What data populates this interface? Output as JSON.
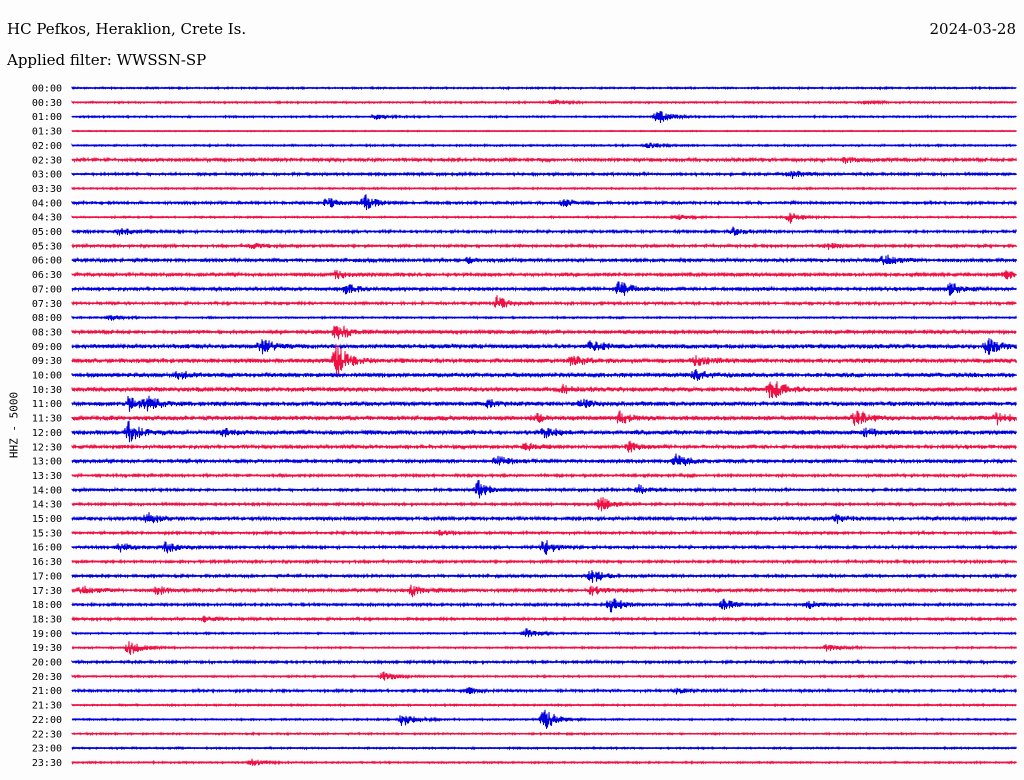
{
  "header": {
    "station": "HC Pefkos, Heraklion, Crete Is.",
    "date": "2024-03-28",
    "filter": "Applied filter: WWSSN-SP"
  },
  "channel_label": "HHZ - 5000",
  "colors": {
    "even_hour": "#0000dd",
    "odd_half": "#ee1144"
  },
  "chart_data": {
    "type": "line",
    "title": "HC Pefkos, Heraklion, Crete Is.",
    "subtitle": "Applied filter: WWSSN-SP",
    "ylabel": "HHZ - 5000",
    "xlabel": "",
    "row_labels": [
      "00:00",
      "00:30",
      "01:00",
      "01:30",
      "02:00",
      "02:30",
      "03:00",
      "03:30",
      "04:00",
      "04:30",
      "05:00",
      "05:30",
      "06:00",
      "06:30",
      "07:00",
      "07:30",
      "08:00",
      "08:30",
      "09:00",
      "09:30",
      "10:00",
      "10:30",
      "11:00",
      "11:30",
      "12:00",
      "12:30",
      "13:00",
      "13:30",
      "14:00",
      "14:30",
      "15:00",
      "15:30",
      "16:00",
      "16:30",
      "17:00",
      "17:30",
      "18:00",
      "18:30",
      "19:00",
      "19:30",
      "20:00",
      "20:30",
      "21:00",
      "21:30",
      "22:00",
      "22:30",
      "23:00",
      "23:30"
    ],
    "row_colors": [
      "blue",
      "red"
    ],
    "noise": [
      1,
      1,
      1,
      0.6,
      1,
      2,
      1.5,
      1,
      1.5,
      1,
      1.5,
      1.5,
      2,
      2,
      2,
      1.5,
      1,
      2,
      2.5,
      2.5,
      2.5,
      2.5,
      2.5,
      2.5,
      2.5,
      2,
      2,
      1.5,
      1.5,
      1.5,
      2,
      1.5,
      1.5,
      1.5,
      1.5,
      2,
      1.5,
      1.5,
      1,
      1,
      1.5,
      1,
      1.5,
      1,
      1,
      1,
      1,
      1
    ],
    "events": [
      {
        "row": 1,
        "x": 0.51,
        "a": 3
      },
      {
        "row": 1,
        "x": 0.84,
        "a": 2
      },
      {
        "row": 2,
        "x": 0.32,
        "a": 3
      },
      {
        "row": 2,
        "x": 0.62,
        "a": 7
      },
      {
        "row": 4,
        "x": 0.61,
        "a": 3
      },
      {
        "row": 5,
        "x": 0.82,
        "a": 3
      },
      {
        "row": 6,
        "x": 0.76,
        "a": 5
      },
      {
        "row": 8,
        "x": 0.27,
        "a": 5
      },
      {
        "row": 8,
        "x": 0.31,
        "a": 8
      },
      {
        "row": 8,
        "x": 0.52,
        "a": 4
      },
      {
        "row": 9,
        "x": 0.64,
        "a": 3
      },
      {
        "row": 9,
        "x": 0.76,
        "a": 6
      },
      {
        "row": 10,
        "x": 0.05,
        "a": 4
      },
      {
        "row": 10,
        "x": 0.7,
        "a": 4
      },
      {
        "row": 11,
        "x": 0.19,
        "a": 3
      },
      {
        "row": 11,
        "x": 0.8,
        "a": 3
      },
      {
        "row": 12,
        "x": 0.42,
        "a": 3
      },
      {
        "row": 12,
        "x": 0.86,
        "a": 6
      },
      {
        "row": 13,
        "x": 0.28,
        "a": 4
      },
      {
        "row": 13,
        "x": 0.99,
        "a": 4
      },
      {
        "row": 14,
        "x": 0.29,
        "a": 6
      },
      {
        "row": 14,
        "x": 0.58,
        "a": 9
      },
      {
        "row": 14,
        "x": 0.93,
        "a": 6
      },
      {
        "row": 15,
        "x": 0.45,
        "a": 7
      },
      {
        "row": 16,
        "x": 0.04,
        "a": 3
      },
      {
        "row": 17,
        "x": 0.28,
        "a": 10
      },
      {
        "row": 18,
        "x": 0.2,
        "a": 8
      },
      {
        "row": 18,
        "x": 0.55,
        "a": 6
      },
      {
        "row": 18,
        "x": 0.97,
        "a": 10
      },
      {
        "row": 19,
        "x": 0.28,
        "a": 18
      },
      {
        "row": 19,
        "x": 0.53,
        "a": 5
      },
      {
        "row": 19,
        "x": 0.66,
        "a": 5
      },
      {
        "row": 20,
        "x": 0.11,
        "a": 4
      },
      {
        "row": 20,
        "x": 0.66,
        "a": 6
      },
      {
        "row": 21,
        "x": 0.52,
        "a": 4
      },
      {
        "row": 21,
        "x": 0.74,
        "a": 12
      },
      {
        "row": 22,
        "x": 0.06,
        "a": 7
      },
      {
        "row": 22,
        "x": 0.08,
        "a": 6
      },
      {
        "row": 22,
        "x": 0.44,
        "a": 4
      },
      {
        "row": 22,
        "x": 0.54,
        "a": 4
      },
      {
        "row": 23,
        "x": 0.49,
        "a": 5
      },
      {
        "row": 23,
        "x": 0.58,
        "a": 7
      },
      {
        "row": 23,
        "x": 0.83,
        "a": 9
      },
      {
        "row": 23,
        "x": 0.98,
        "a": 6
      },
      {
        "row": 24,
        "x": 0.06,
        "a": 10
      },
      {
        "row": 24,
        "x": 0.16,
        "a": 4
      },
      {
        "row": 24,
        "x": 0.5,
        "a": 5
      },
      {
        "row": 24,
        "x": 0.84,
        "a": 4
      },
      {
        "row": 25,
        "x": 0.48,
        "a": 4
      },
      {
        "row": 25,
        "x": 0.59,
        "a": 5
      },
      {
        "row": 26,
        "x": 0.45,
        "a": 5
      },
      {
        "row": 26,
        "x": 0.64,
        "a": 7
      },
      {
        "row": 28,
        "x": 0.43,
        "a": 10
      },
      {
        "row": 28,
        "x": 0.6,
        "a": 5
      },
      {
        "row": 29,
        "x": 0.56,
        "a": 8
      },
      {
        "row": 30,
        "x": 0.08,
        "a": 6
      },
      {
        "row": 30,
        "x": 0.81,
        "a": 4
      },
      {
        "row": 31,
        "x": 0.39,
        "a": 3
      },
      {
        "row": 32,
        "x": 0.05,
        "a": 5
      },
      {
        "row": 32,
        "x": 0.1,
        "a": 6
      },
      {
        "row": 32,
        "x": 0.5,
        "a": 8
      },
      {
        "row": 34,
        "x": 0.55,
        "a": 8
      },
      {
        "row": 35,
        "x": 0.01,
        "a": 4
      },
      {
        "row": 35,
        "x": 0.09,
        "a": 4
      },
      {
        "row": 35,
        "x": 0.36,
        "a": 7
      },
      {
        "row": 35,
        "x": 0.55,
        "a": 5
      },
      {
        "row": 36,
        "x": 0.57,
        "a": 8
      },
      {
        "row": 36,
        "x": 0.69,
        "a": 6
      },
      {
        "row": 36,
        "x": 0.78,
        "a": 4
      },
      {
        "row": 37,
        "x": 0.14,
        "a": 3
      },
      {
        "row": 38,
        "x": 0.48,
        "a": 5
      },
      {
        "row": 39,
        "x": 0.06,
        "a": 8
      },
      {
        "row": 39,
        "x": 0.8,
        "a": 4
      },
      {
        "row": 41,
        "x": 0.33,
        "a": 5
      },
      {
        "row": 42,
        "x": 0.42,
        "a": 3
      },
      {
        "row": 42,
        "x": 0.64,
        "a": 3
      },
      {
        "row": 44,
        "x": 0.35,
        "a": 8
      },
      {
        "row": 44,
        "x": 0.5,
        "a": 12
      },
      {
        "row": 47,
        "x": 0.19,
        "a": 4
      }
    ]
  }
}
